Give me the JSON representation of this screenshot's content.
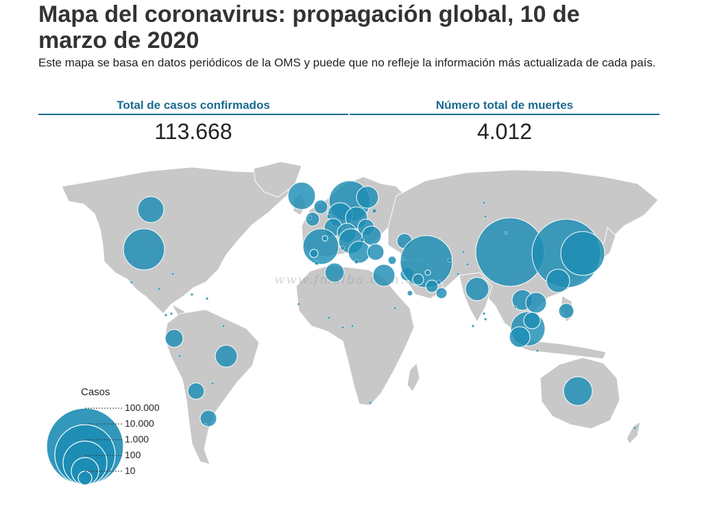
{
  "header": {
    "title": "Mapa del coronavirus: propagación global, 10 de marzo de 2020",
    "subtitle": "Este mapa se basa en datos periódicos de la OMS y puede que no refleje la información más actualizada de cada país."
  },
  "stats": {
    "cases_label": "Total de casos confirmados",
    "cases_value": "113.668",
    "deaths_label": "Número total de muertes",
    "deaths_value": "4.012"
  },
  "legend": {
    "title": "Casos",
    "levels": [
      {
        "value": 100000,
        "label": "100.000"
      },
      {
        "value": 10000,
        "label": "10.000"
      },
      {
        "value": 1000,
        "label": "1.000"
      },
      {
        "value": 100,
        "label": "100"
      },
      {
        "value": 10,
        "label": "10"
      }
    ]
  },
  "watermark": "www.fmalba.com.ar",
  "colors": {
    "land": "#c8c8c8",
    "bubble": "#1d8db5",
    "bubble_stroke": "#ffffff",
    "accent": "#1a6a8f"
  }
}
